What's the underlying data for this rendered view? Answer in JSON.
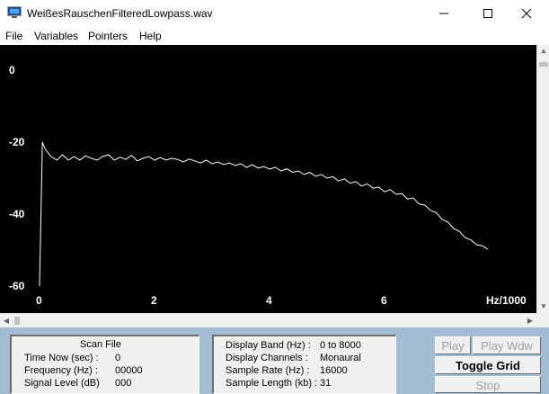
{
  "window": {
    "title": "WeißesRauschenFilteredLowpass.wav"
  },
  "menu": [
    "File",
    "Variables",
    "Pointers",
    "Help"
  ],
  "chart_data": {
    "type": "line",
    "xlabel": "Hz/1000",
    "x_ticks": [
      "0",
      "2",
      "4",
      "6"
    ],
    "y_ticks": [
      "0",
      "-20",
      "-40",
      "-60"
    ],
    "xlim": [
      0,
      8
    ],
    "ylim": [
      -60,
      0
    ],
    "grid": false,
    "background": "#000000",
    "line_color": "#ffffff",
    "series": [
      {
        "x": [
          0.0,
          0.05,
          0.1,
          0.2,
          0.3,
          0.4,
          0.5,
          0.6,
          0.7,
          0.8,
          0.9,
          1.0,
          1.1,
          1.2,
          1.3,
          1.4,
          1.5,
          1.6,
          1.7,
          1.8,
          1.9,
          2.0,
          2.1,
          2.2,
          2.3,
          2.4,
          2.5,
          2.6,
          2.7,
          2.8,
          2.9,
          3.0,
          3.1,
          3.2,
          3.3,
          3.4,
          3.5,
          3.6,
          3.7,
          3.8,
          3.9,
          4.0,
          4.1,
          4.2,
          4.3,
          4.4,
          4.5,
          4.6,
          4.7,
          4.8,
          4.9,
          5.0,
          5.1,
          5.2,
          5.3,
          5.4,
          5.5,
          5.6,
          5.7,
          5.8,
          5.9,
          6.0,
          6.1,
          6.2,
          6.3,
          6.4,
          6.5,
          6.6,
          6.7,
          6.8,
          6.9,
          7.0,
          7.1,
          7.2,
          7.3,
          7.4,
          7.5,
          7.6,
          7.7,
          7.8
        ],
        "y": [
          -60,
          -20,
          -22,
          -24,
          -25,
          -23.5,
          -25,
          -24,
          -25,
          -23.8,
          -24.5,
          -25,
          -24,
          -23.5,
          -25,
          -24.2,
          -24.8,
          -23.7,
          -25.2,
          -24.5,
          -24,
          -25,
          -24.3,
          -25,
          -24.5,
          -24.8,
          -25.5,
          -24.7,
          -25.2,
          -25.8,
          -25,
          -26,
          -25.5,
          -26.2,
          -25.8,
          -26.5,
          -26,
          -27,
          -26.3,
          -27.2,
          -26.8,
          -27.5,
          -27,
          -28,
          -27.4,
          -28.4,
          -28,
          -29,
          -28.4,
          -29.5,
          -29,
          -30,
          -29.6,
          -30.8,
          -30.2,
          -31.4,
          -31,
          -32.2,
          -31.6,
          -32.8,
          -32.5,
          -33.8,
          -33.2,
          -34.5,
          -34.3,
          -35.8,
          -35.5,
          -37.2,
          -37.5,
          -39,
          -39.6,
          -41.5,
          -42.2,
          -44,
          -44.8,
          -46.5,
          -47.2,
          -48.5,
          -48.8,
          -49.8
        ]
      }
    ]
  },
  "info_left": {
    "heading": "Scan File",
    "rows": [
      {
        "label": "Time Now (sec) :",
        "value": "0"
      },
      {
        "label": "Frequency (Hz) :",
        "value": "00000"
      },
      {
        "label": "Signal Level (dB)",
        "value": "000"
      }
    ]
  },
  "info_right": {
    "rows": [
      {
        "label": "Display Band (Hz) :",
        "value": "0 to 8000"
      },
      {
        "label": "Display Channels :",
        "value": "Monaural"
      },
      {
        "label": "Sample Rate (Hz) :",
        "value": "16000"
      },
      {
        "label": "Sample Length (kb) :",
        "value": "31"
      }
    ]
  },
  "buttons": {
    "play": "Play",
    "play_wdw": "Play Wdw",
    "toggle_grid": "Toggle Grid",
    "stop": "Stop"
  }
}
